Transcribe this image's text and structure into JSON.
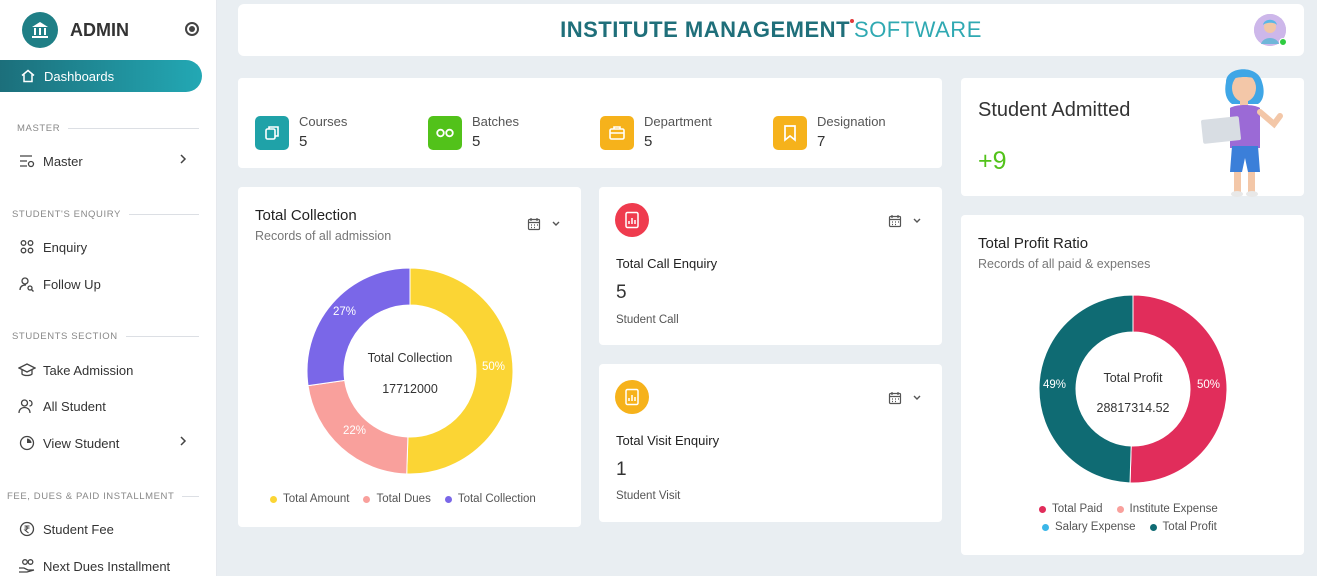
{
  "sidebar": {
    "title": "ADMIN",
    "active": "Dashboards",
    "sections": {
      "master": "MASTER",
      "enquiry": "STUDENT'S ENQUIRY",
      "students": "STUDENTS SECTION",
      "fees": "FEE, DUES & PAID INSTALLMENT"
    },
    "items": {
      "master": "Master",
      "enquiry": "Enquiry",
      "follow_up": "Follow Up",
      "take_admission": "Take Admission",
      "all_student": "All Student",
      "view_student": "View Student",
      "student_fee": "Student Fee",
      "next_dues": "Next Dues Installment"
    }
  },
  "header": {
    "title_part1": "INSTITUTE MANAGEMENT",
    "title_part2": "SOFTWARE"
  },
  "stats": [
    {
      "label": "Courses",
      "value": "5",
      "color": "#1fa2a8",
      "icon": "copy-icon"
    },
    {
      "label": "Batches",
      "value": "5",
      "color": "#52c21a",
      "icon": "batches-icon"
    },
    {
      "label": "Department",
      "value": "5",
      "color": "#f6b21b",
      "icon": "briefcase-icon"
    },
    {
      "label": "Designation",
      "value": "7",
      "color": "#f6b21b",
      "icon": "bookmark-icon"
    }
  ],
  "admitted": {
    "title": "Student Admitted",
    "value": "+9"
  },
  "collection": {
    "title": "Total Collection",
    "subtitle": "Records of all admission",
    "center_label": "Total Collection",
    "center_value": "17712000",
    "slices": [
      {
        "name": "Total Amount",
        "percent": 50,
        "label": "50%",
        "color": "#fbd534"
      },
      {
        "name": "Total Dues",
        "percent": 22,
        "label": "22%",
        "color": "#f9a09c"
      },
      {
        "name": "Total Collection",
        "percent": 27,
        "label": "27%",
        "color": "#7a67e8"
      }
    ]
  },
  "call_enquiry": {
    "title": "Total Call Enquiry",
    "value": "5",
    "sub": "Student Call"
  },
  "visit_enquiry": {
    "title": "Total Visit Enquiry",
    "value": "1",
    "sub": "Student Visit"
  },
  "profit": {
    "title": "Total Profit Ratio",
    "subtitle": "Records of all paid & expenses",
    "center_label": "Total Profit",
    "center_value": "28817314.52",
    "slices": [
      {
        "name": "Total Paid",
        "percent": 50,
        "label": "50%",
        "color": "#e12d5b"
      },
      {
        "name": "Institute Expense",
        "percent": 0,
        "label": "",
        "color": "#f9a09c"
      },
      {
        "name": "Salary Expense",
        "percent": 0,
        "label": "",
        "color": "#3bb6e8"
      },
      {
        "name": "Total Profit",
        "percent": 49,
        "label": "49%",
        "color": "#0f6b73"
      }
    ]
  }
}
